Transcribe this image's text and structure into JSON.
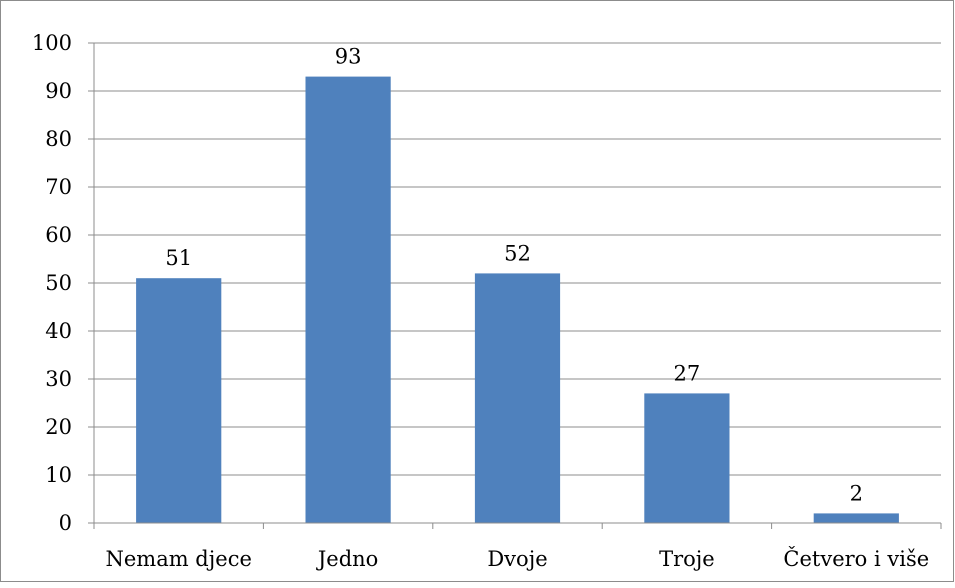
{
  "chart_data": {
    "type": "bar",
    "categories": [
      "Nemam djece",
      "Jedno",
      "Dvoje",
      "Troje",
      "Četvero i više"
    ],
    "values": [
      51,
      93,
      52,
      27,
      2
    ],
    "data_labels": [
      "51",
      "93",
      "52",
      "27",
      "2"
    ],
    "title": "",
    "xlabel": "",
    "ylabel": "",
    "ylim": [
      0,
      100
    ],
    "yticks": [
      0,
      10,
      20,
      30,
      40,
      50,
      60,
      70,
      80,
      90,
      100
    ],
    "ytick_labels": [
      "0",
      "10",
      "20",
      "30",
      "40",
      "50",
      "60",
      "70",
      "80",
      "90",
      "100"
    ],
    "grid": true,
    "legend": "none",
    "colors": {
      "bar": "#4f81bd",
      "grid": "#8c8c8c",
      "axis": "#8c8c8c"
    }
  }
}
